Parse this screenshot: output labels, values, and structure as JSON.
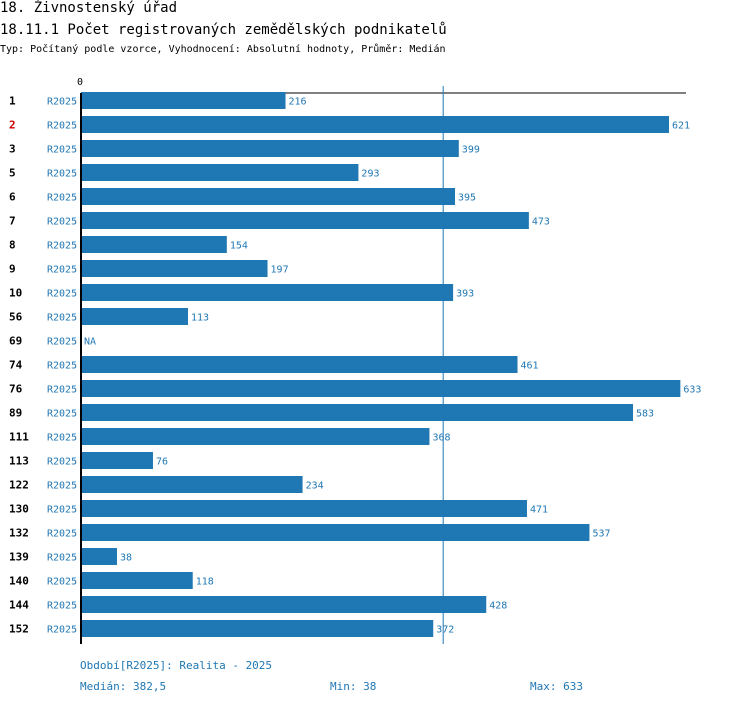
{
  "header": {
    "title": "18. Živnostenský úřad",
    "subtitle": "18.11.1 Počet registrovaných zemědělských podnikatelů",
    "type_line": "Typ: Počítaný podle vzorce, Vyhodnocení: Absolutní hodnoty, Průměr: Medián"
  },
  "chart_data": {
    "type": "bar",
    "orientation": "horizontal",
    "axis_zero_label": "0",
    "series_label": "R2025",
    "categories": [
      "1",
      "2",
      "3",
      "5",
      "6",
      "7",
      "8",
      "9",
      "10",
      "56",
      "69",
      "74",
      "76",
      "89",
      "111",
      "113",
      "122",
      "130",
      "132",
      "139",
      "140",
      "144",
      "152"
    ],
    "values": [
      216,
      621,
      399,
      293,
      395,
      473,
      154,
      197,
      393,
      113,
      null,
      461,
      633,
      583,
      368,
      76,
      234,
      471,
      537,
      38,
      118,
      428,
      372
    ],
    "value_labels": [
      "216",
      "621",
      "399",
      "293",
      "395",
      "473",
      "154",
      "197",
      "393",
      "113",
      "NA",
      "461",
      "633",
      "583",
      "368",
      "76",
      "234",
      "471",
      "537",
      "38",
      "118",
      "428",
      "372"
    ],
    "highlight_category": "2",
    "median_line": 382.5,
    "xlim": [
      0,
      640
    ],
    "bar_color": "#1f77b4",
    "highlight_color": "#cc0000"
  },
  "footer": {
    "period": "Období[R2025]: Realita - 2025",
    "median": "Medián: 382,5",
    "min": "Min: 38",
    "max": "Max: 633"
  }
}
